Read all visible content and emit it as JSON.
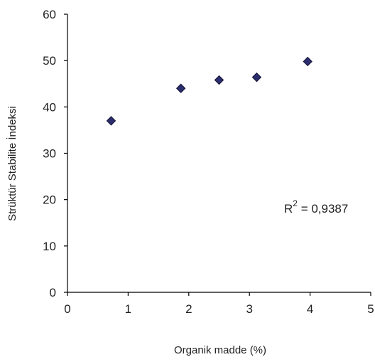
{
  "chart_data": {
    "type": "scatter",
    "title": "",
    "xlabel": "Organik madde (%)",
    "ylabel": "Strüktür Stabilite İndeksi",
    "xlim": [
      0,
      5
    ],
    "ylim": [
      0,
      60
    ],
    "xticks": [
      "0",
      "1",
      "2",
      "3",
      "4",
      "5"
    ],
    "yticks": [
      "0",
      "10",
      "20",
      "30",
      "40",
      "50",
      "60"
    ],
    "grid": false,
    "legend": "none",
    "marker": "diamond",
    "marker_color": "#2b2d6e",
    "series": [
      {
        "x": [
          0.72,
          1.87,
          2.5,
          3.12,
          3.96
        ],
        "y": [
          37,
          44,
          45.8,
          46.4,
          49.8
        ]
      }
    ],
    "annotation": {
      "base": "R",
      "superscript": "2",
      "text": " = 0,9387"
    }
  }
}
